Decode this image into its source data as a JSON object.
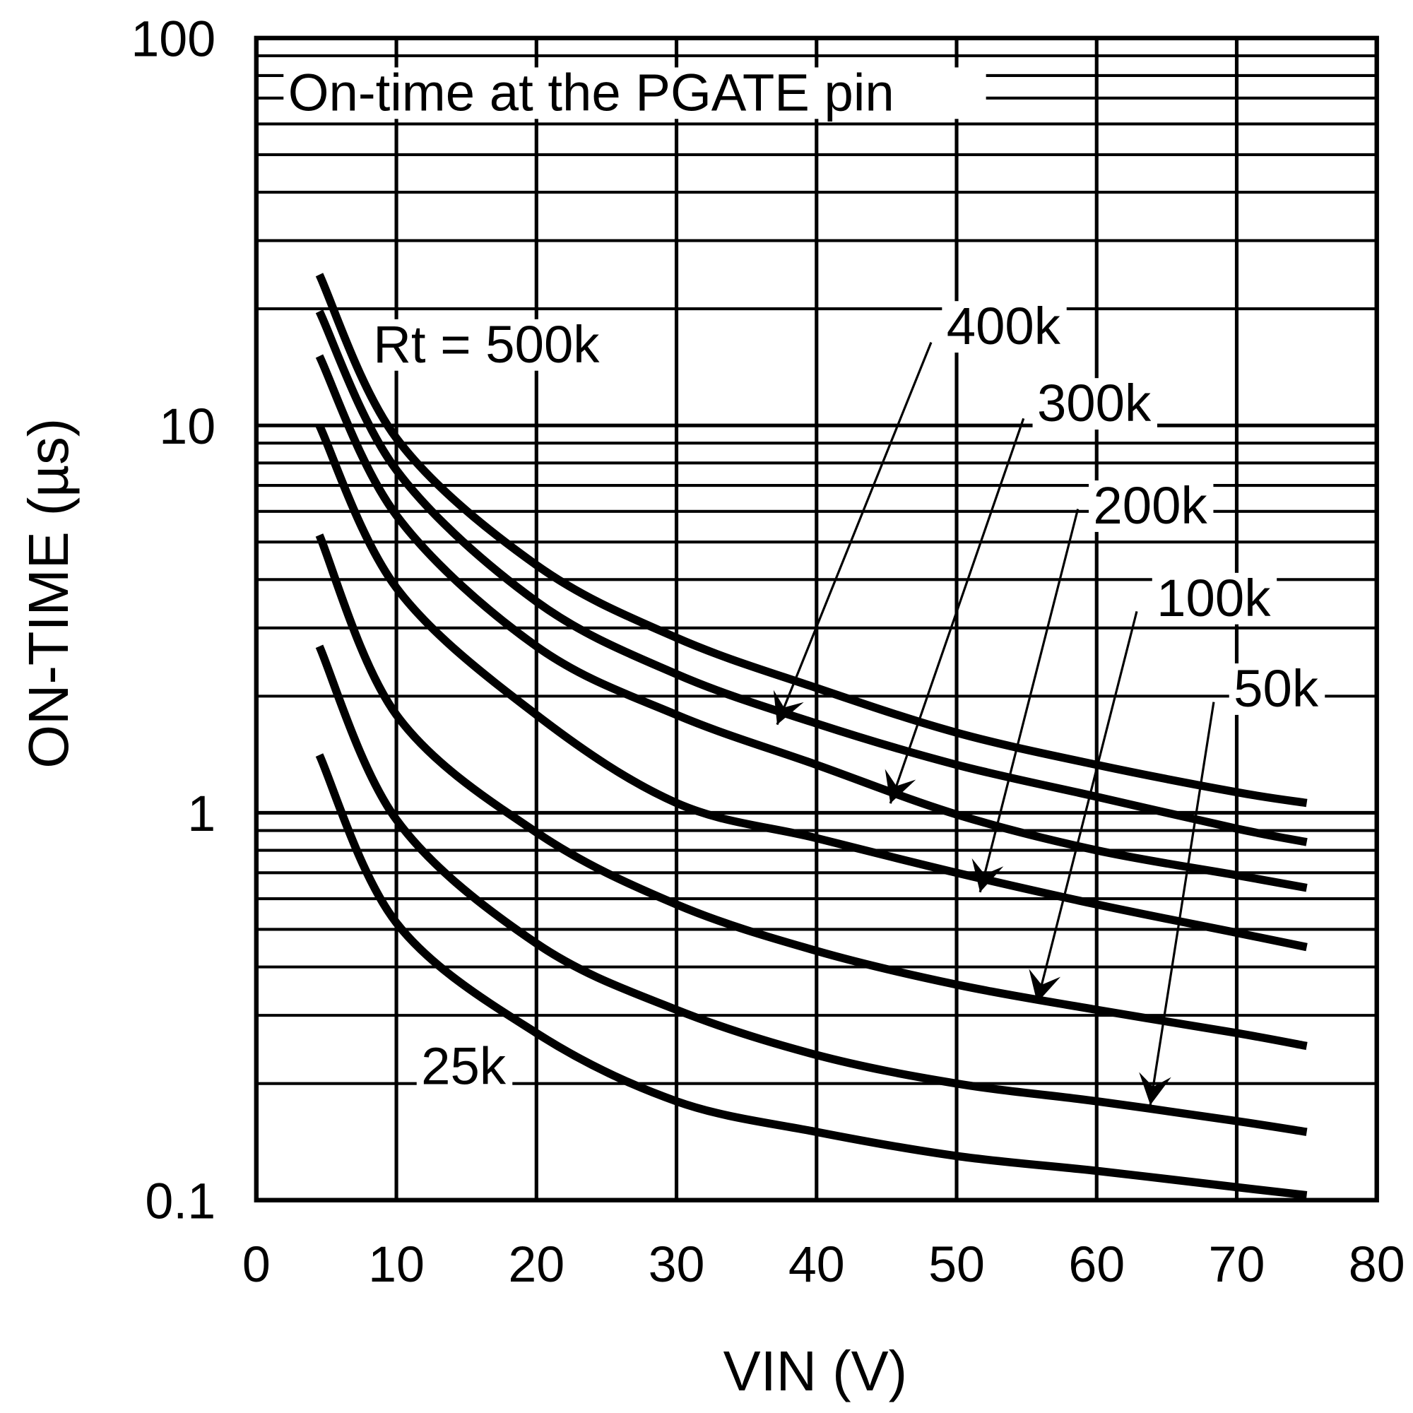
{
  "chart_data": {
    "type": "line",
    "title": "On-time at the PGATE pin",
    "xlabel": "VIN (V)",
    "ylabel": "ON-TIME (µs)",
    "xlim": [
      0,
      80
    ],
    "ylim": [
      0.1,
      100
    ],
    "yscale": "log",
    "grid": true,
    "x_ticks": [
      "0",
      "10",
      "20",
      "30",
      "40",
      "50",
      "60",
      "70",
      "80"
    ],
    "y_ticks": [
      "0.1",
      "1",
      "10",
      "100"
    ],
    "x": [
      4.5,
      10,
      20,
      30,
      40,
      50,
      60,
      70,
      75
    ],
    "series": [
      {
        "name": "500k",
        "label": "Rt = 500k",
        "values": [
          24.5,
          9.27,
          4.36,
          2.83,
          2.1,
          1.61,
          1.33,
          1.13,
          1.06
        ]
      },
      {
        "name": "400k",
        "label": "400k",
        "values": [
          19.7,
          7.67,
          3.51,
          2.28,
          1.7,
          1.33,
          1.1,
          0.91,
          0.84
        ]
      },
      {
        "name": "300k",
        "label": "300k",
        "values": [
          15.1,
          5.86,
          2.69,
          1.79,
          1.33,
          0.99,
          0.8,
          0.69,
          0.64
        ]
      },
      {
        "name": "200k",
        "label": "200k",
        "values": [
          10.0,
          3.81,
          1.79,
          1.06,
          0.86,
          0.7,
          0.58,
          0.49,
          0.45
        ]
      },
      {
        "name": "100k",
        "label": "100k",
        "values": [
          5.21,
          1.79,
          0.89,
          0.58,
          0.44,
          0.36,
          0.31,
          0.27,
          0.25
        ]
      },
      {
        "name": "50k",
        "label": "50k",
        "values": [
          2.69,
          0.96,
          0.46,
          0.31,
          0.237,
          0.2,
          0.18,
          0.16,
          0.15
        ]
      },
      {
        "name": "25k",
        "label": "25k",
        "values": [
          1.41,
          0.52,
          0.27,
          0.18,
          0.15,
          0.13,
          0.119,
          0.108,
          0.103
        ]
      }
    ],
    "line_color": "#000000",
    "background": "#ffffff"
  }
}
